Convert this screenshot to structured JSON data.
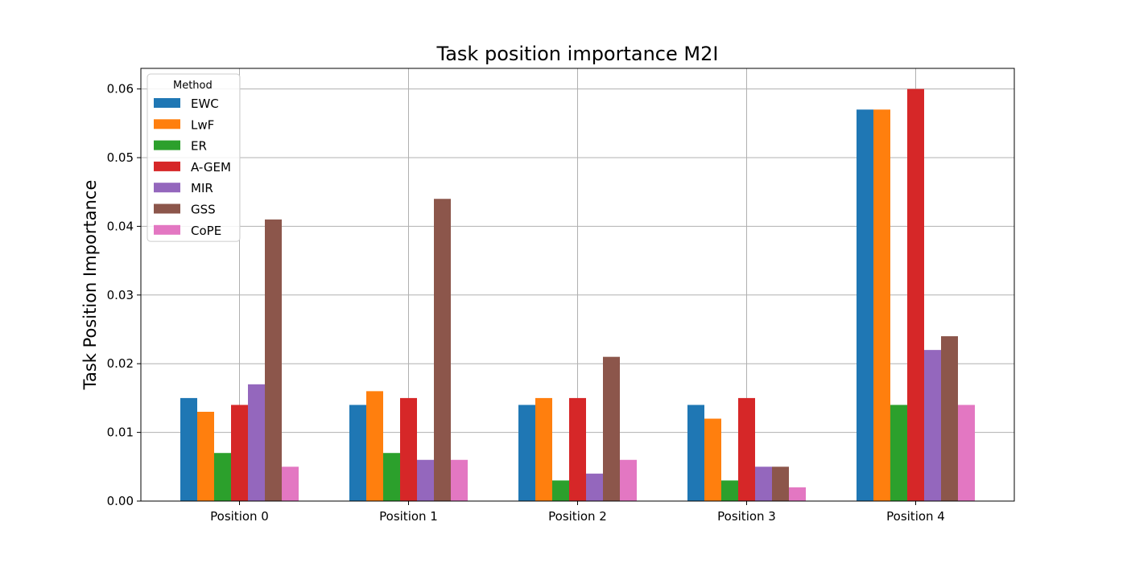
{
  "chart_data": {
    "type": "bar",
    "title": "Task position importance M2I",
    "xlabel": "",
    "ylabel": "Task Position Importance",
    "categories": [
      "Position 0",
      "Position 1",
      "Position 2",
      "Position 3",
      "Position 4"
    ],
    "ylim": [
      0,
      0.063
    ],
    "yticks": [
      "0.00",
      "0.01",
      "0.02",
      "0.03",
      "0.04",
      "0.05",
      "0.06"
    ],
    "grid": true,
    "legend": {
      "title": "Method",
      "placement": "upper-left"
    },
    "series": [
      {
        "name": "EWC",
        "color": "#1f77b4",
        "values": [
          0.015,
          0.014,
          0.014,
          0.014,
          0.057
        ]
      },
      {
        "name": "LwF",
        "color": "#ff7f0e",
        "values": [
          0.013,
          0.016,
          0.015,
          0.012,
          0.057
        ]
      },
      {
        "name": "ER",
        "color": "#2ca02c",
        "values": [
          0.007,
          0.007,
          0.003,
          0.003,
          0.014
        ]
      },
      {
        "name": "A-GEM",
        "color": "#d62728",
        "values": [
          0.014,
          0.015,
          0.015,
          0.015,
          0.06
        ]
      },
      {
        "name": "MIR",
        "color": "#9467bd",
        "values": [
          0.017,
          0.006,
          0.004,
          0.005,
          0.022
        ]
      },
      {
        "name": "GSS",
        "color": "#8c564b",
        "values": [
          0.041,
          0.044,
          0.021,
          0.005,
          0.024
        ]
      },
      {
        "name": "CoPE",
        "color": "#e377c2",
        "values": [
          0.005,
          0.006,
          0.006,
          0.002,
          0.014
        ]
      }
    ]
  }
}
